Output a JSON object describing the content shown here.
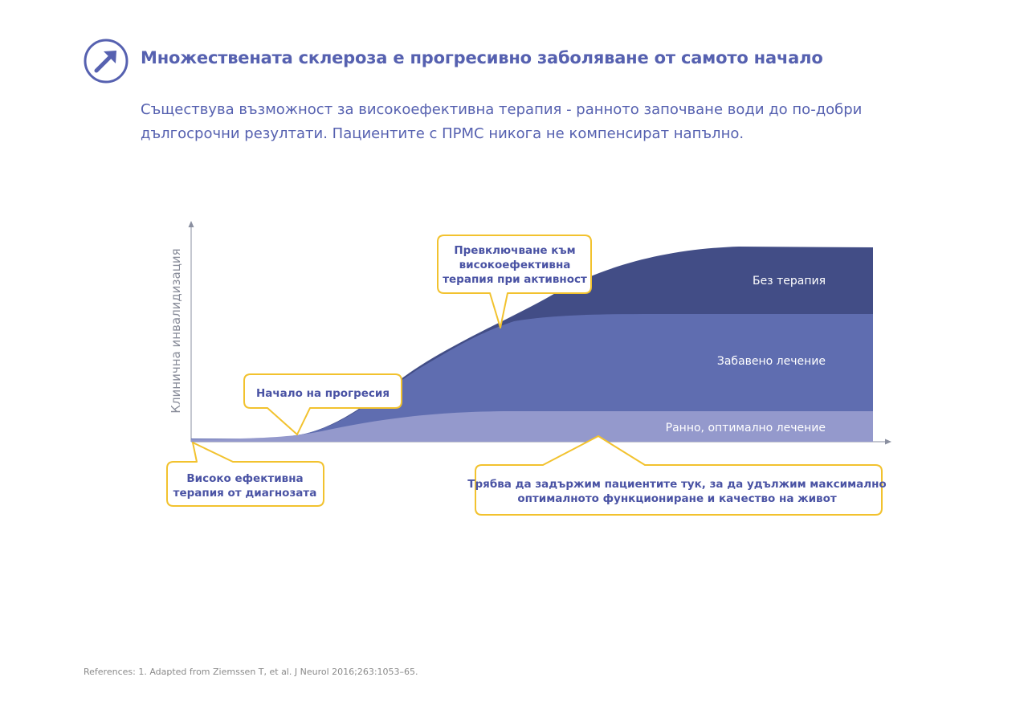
{
  "header": {
    "icon": "arrow-up-right-circle-icon",
    "title": "Множествената склероза е прогресивно заболяване от самото начало",
    "subtitle_line1": "Съществува  възможност за високоефективна терапия - ранното започване води до по-добри",
    "subtitle_line2": "дългосрочни резултати. Пациентите с ПРМС никога не компенсират напълно."
  },
  "diagram": {
    "y_axis_label": "Клинична инвалидизация",
    "bands": {
      "no_therapy": "Без терапия",
      "delayed": "Забавено лечение",
      "early": "Ранно, оптимално лечение"
    },
    "callouts": {
      "switch_line1": "Превключване към",
      "switch_line2": "високоефективна",
      "switch_line3": "терапия при активност",
      "progression": "Начало на прогресия",
      "high_eff_line1": "Високо ефективна",
      "high_eff_line2": "терапия от диагнозата",
      "keep_line1": "Трябва да задържим пациентите тук, за да удължим максимално",
      "keep_line2": "оптималното функциониране и качество на живот"
    },
    "colors": {
      "no_therapy": "#424d86",
      "delayed": "#5f6db0",
      "early": "#9499cc",
      "callout_border": "#f2c22e",
      "callout_text": "#4a53a4",
      "accent": "#5661b0"
    }
  },
  "references": "References: 1. Adapted from Ziemssen T, et al. J Neurol 2016;263:1053–65."
}
